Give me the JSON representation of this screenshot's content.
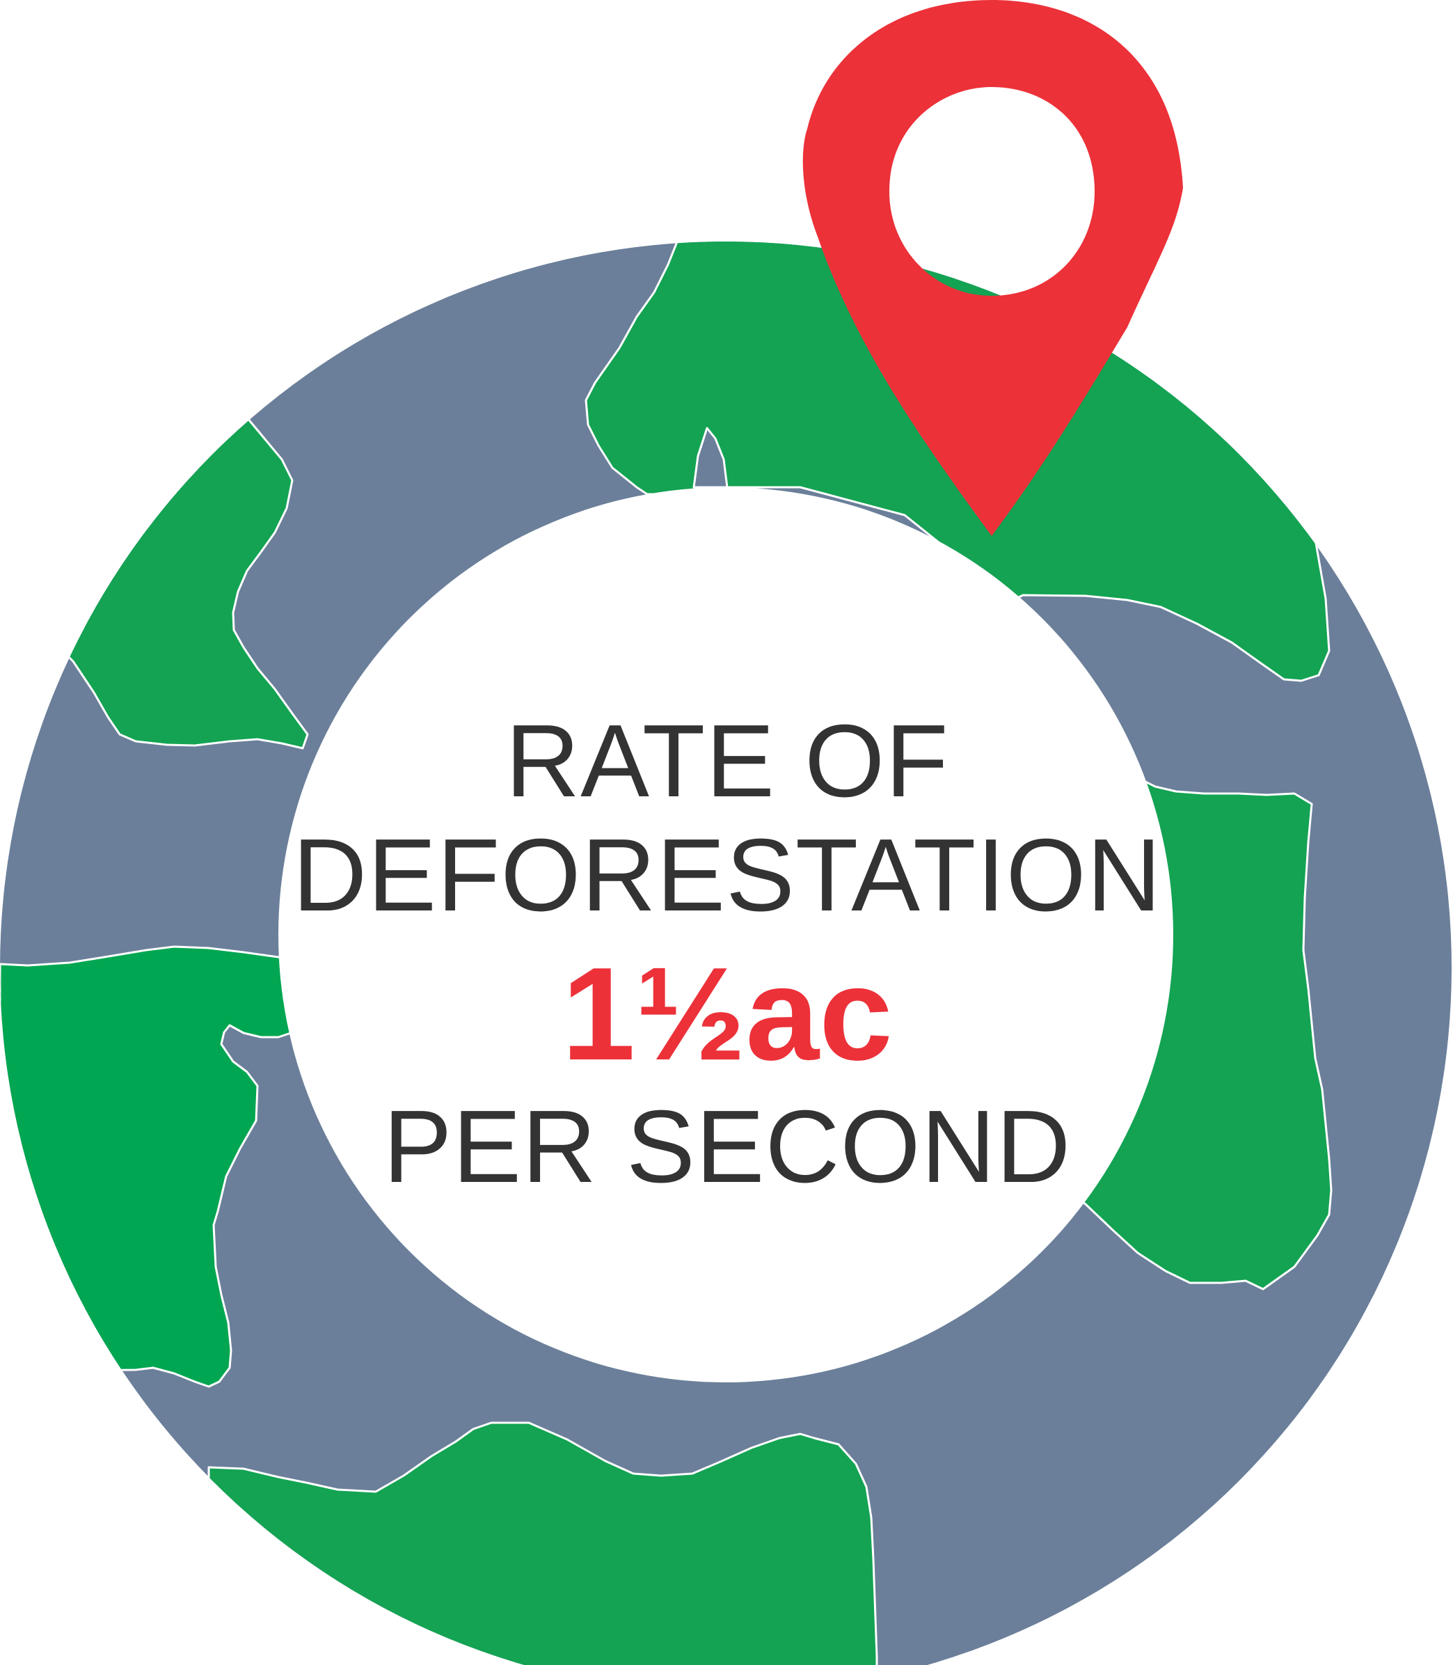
{
  "infographic": {
    "line1": "RATE OF",
    "line2": "DEFORESTATION",
    "rate": "1½ac",
    "line4": "PER SECOND"
  },
  "icons": [
    "globe-icon",
    "map-pin-icon"
  ],
  "colors": {
    "ocean": "#6b7f9a",
    "land": "#13a353",
    "land_dark": "#00a651",
    "pin": "#ec3139",
    "text": "#333333",
    "center": "#ffffff"
  }
}
